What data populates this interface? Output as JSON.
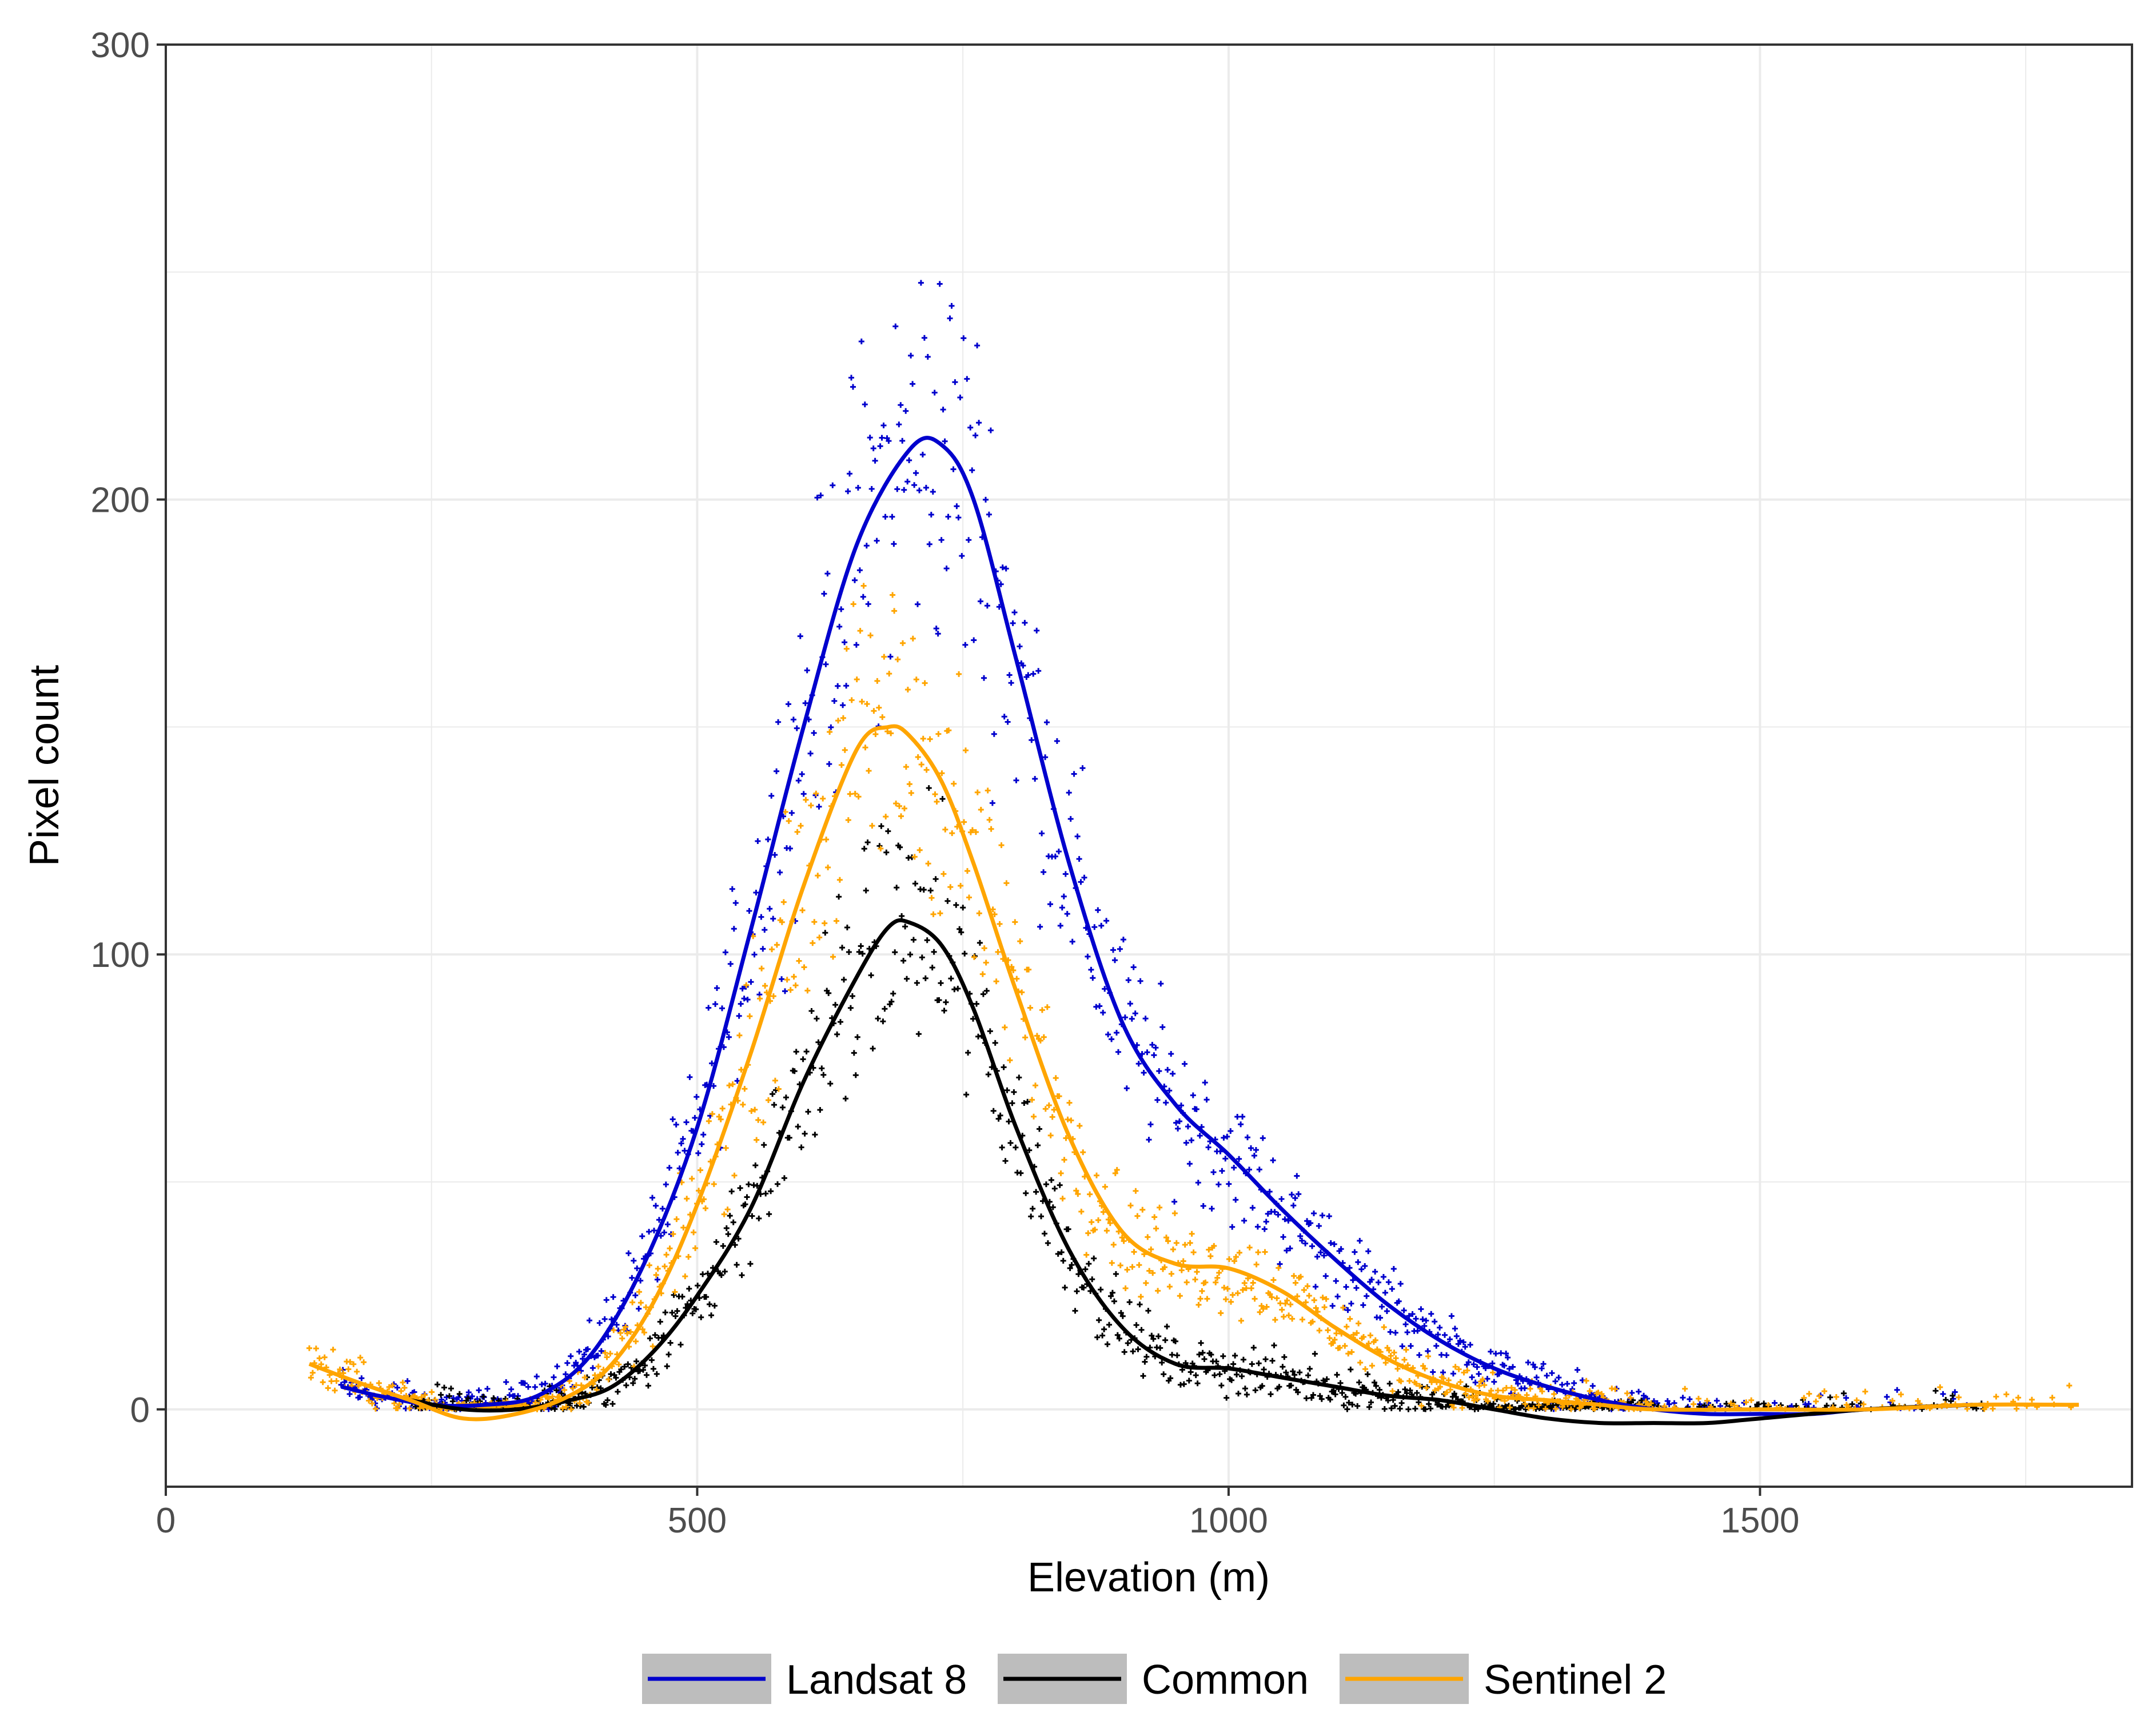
{
  "chart_data": {
    "type": "scatter",
    "title": "",
    "xlabel": "Elevation (m)",
    "ylabel": "Pixel count",
    "xlim": [
      0,
      1850
    ],
    "ylim": [
      -17,
      300
    ],
    "xticks": [
      0,
      500,
      1000,
      1500
    ],
    "yticks": [
      0,
      100,
      200,
      300
    ],
    "x_tick_labels": [
      "0",
      "500",
      "1000",
      "1500"
    ],
    "y_tick_labels": [
      "0",
      "100",
      "200",
      "300"
    ],
    "grid": true,
    "legend_position": "bottom",
    "scatter_marker": "plus",
    "series": [
      {
        "name": "Landsat 8",
        "color": "#0000CD",
        "smooth": [
          [
            165,
            5
          ],
          [
            200,
            3
          ],
          [
            250,
            1
          ],
          [
            300,
            1
          ],
          [
            350,
            3
          ],
          [
            400,
            12
          ],
          [
            450,
            32
          ],
          [
            500,
            62
          ],
          [
            550,
            105
          ],
          [
            600,
            150
          ],
          [
            650,
            190
          ],
          [
            700,
            211
          ],
          [
            730,
            212
          ],
          [
            760,
            200
          ],
          [
            800,
            165
          ],
          [
            850,
            120
          ],
          [
            900,
            85
          ],
          [
            950,
            67
          ],
          [
            1000,
            56
          ],
          [
            1050,
            44
          ],
          [
            1100,
            33
          ],
          [
            1150,
            23
          ],
          [
            1200,
            15
          ],
          [
            1250,
            9
          ],
          [
            1300,
            5
          ],
          [
            1350,
            2
          ],
          [
            1400,
            0
          ],
          [
            1450,
            -1
          ],
          [
            1500,
            -1
          ],
          [
            1550,
            -1
          ],
          [
            1600,
            0
          ],
          [
            1700,
            1
          ]
        ],
        "scatter": {
          "x_range": [
            165,
            1710
          ],
          "peak": [
            700,
            212
          ],
          "spread": 0.14
        }
      },
      {
        "name": "Common",
        "color": "#000000",
        "smooth": [
          [
            230,
            2
          ],
          [
            280,
            0
          ],
          [
            330,
            0
          ],
          [
            380,
            2
          ],
          [
            420,
            5
          ],
          [
            460,
            13
          ],
          [
            500,
            25
          ],
          [
            550,
            44
          ],
          [
            600,
            72
          ],
          [
            650,
            95
          ],
          [
            680,
            106
          ],
          [
            700,
            107
          ],
          [
            730,
            102
          ],
          [
            760,
            88
          ],
          [
            800,
            62
          ],
          [
            850,
            35
          ],
          [
            900,
            18
          ],
          [
            950,
            10
          ],
          [
            1000,
            9
          ],
          [
            1050,
            7
          ],
          [
            1100,
            5
          ],
          [
            1150,
            3
          ],
          [
            1200,
            2
          ],
          [
            1250,
            0
          ],
          [
            1300,
            -2
          ],
          [
            1350,
            -3
          ],
          [
            1400,
            -3
          ],
          [
            1450,
            -3
          ],
          [
            1500,
            -2
          ],
          [
            1600,
            0
          ],
          [
            1700,
            1
          ]
        ],
        "scatter": {
          "x_range": [
            230,
            1710
          ],
          "peak": [
            700,
            107
          ],
          "spread": 0.16
        }
      },
      {
        "name": "Sentinel 2",
        "color": "#FFA500",
        "smooth": [
          [
            135,
            10
          ],
          [
            180,
            6
          ],
          [
            230,
            2
          ],
          [
            280,
            -2
          ],
          [
            330,
            -1
          ],
          [
            380,
            3
          ],
          [
            420,
            10
          ],
          [
            460,
            24
          ],
          [
            500,
            45
          ],
          [
            550,
            78
          ],
          [
            600,
            115
          ],
          [
            650,
            145
          ],
          [
            680,
            150
          ],
          [
            700,
            148
          ],
          [
            730,
            138
          ],
          [
            760,
            120
          ],
          [
            800,
            92
          ],
          [
            850,
            60
          ],
          [
            900,
            39
          ],
          [
            950,
            32
          ],
          [
            1000,
            31
          ],
          [
            1050,
            26
          ],
          [
            1100,
            18
          ],
          [
            1150,
            11
          ],
          [
            1200,
            6
          ],
          [
            1250,
            3
          ],
          [
            1300,
            2
          ],
          [
            1350,
            1
          ],
          [
            1400,
            0
          ],
          [
            1500,
            0
          ],
          [
            1600,
            0
          ],
          [
            1700,
            1
          ],
          [
            1800,
            1
          ]
        ],
        "scatter": {
          "x_range": [
            135,
            1800
          ],
          "peak": [
            680,
            150
          ],
          "spread": 0.15
        }
      }
    ]
  }
}
